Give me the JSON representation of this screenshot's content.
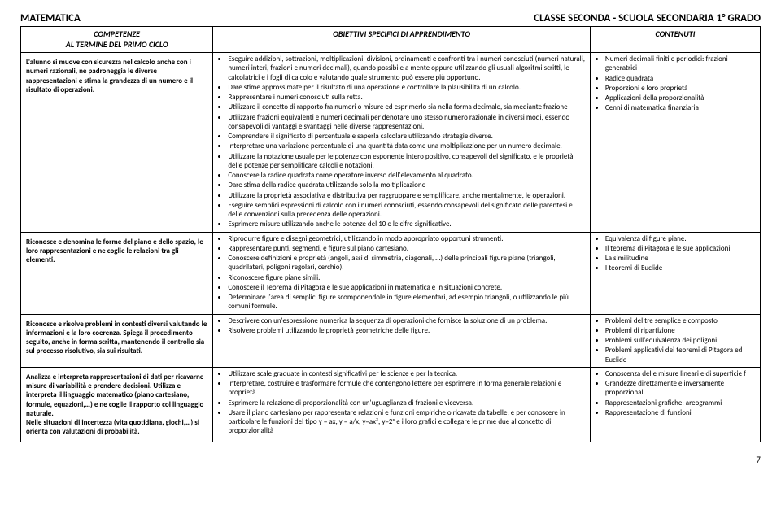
{
  "header": {
    "left": "MATEMATICA",
    "right": "CLASSE  SECONDA -  SCUOLA SECONDARIA 1° GRADO"
  },
  "columns": {
    "competenze": "COMPETENZE\nAL TERMINE DEL PRIMO CICLO",
    "obiettivi": "OBIETTIVI SPECIFICI DI APPRENDIMENTO",
    "contenuti": "CONTENUTI"
  },
  "rows": [
    {
      "comp": "L'alunno si muove con sicurezza nel calcolo anche con i numeri razionali, ne padroneggia le diverse rappresentazioni e stima la grandezza di un numero e il risultato di operazioni.",
      "obj": [
        "Eseguire addizioni, sottrazioni, moltiplicazioni, divisioni, ordinamenti e confronti tra i numeri conosciuti (numeri naturali, numeri interi, frazioni e numeri decimali), quando possibile a mente oppure utilizzando gli usuali algoritmi scritti, le calcolatrici e i fogli di calcolo e valutando quale strumento può essere più opportuno.",
        "Dare stime approssimate per il risultato di una operazione e controllare la plausibilità di un calcolo.",
        "Rappresentare i numeri conosciuti sulla retta.",
        "Utilizzare il concetto di rapporto fra numeri o misure ed esprimerlo sia nella forma decimale, sia mediante frazione",
        "Utilizzare frazioni equivalenti e numeri decimali per denotare uno stesso numero razionale in diversi modi, essendo consapevoli di vantaggi e svantaggi nelle diverse rappresentazioni.",
        "Comprendere il significato di percentuale e saperla calcolare utilizzando strategie diverse.",
        "Interpretare una variazione percentuale di una quantità data come una moltiplicazione per un numero decimale.",
        "Utilizzare la notazione usuale per le potenze con esponente intero positivo, consapevoli del significato, e le proprietà delle potenze per semplificare calcoli e notazioni.",
        "Conoscere la radice quadrata come operatore inverso dell'elevamento al quadrato.",
        "Dare stima della radice quadrata utilizzando solo la moltiplicazione",
        "Utilizzare la proprietà associativa e distributiva per raggruppare e semplificare, anche mentalmente, le operazioni.",
        "Eseguire semplici espressioni di calcolo con i numeri conosciuti, essendo consapevoli del significato delle parentesi e delle convenzioni sulla precedenza delle operazioni.",
        "Esprimere misure utilizzando anche le potenze del 10 e le cifre significative."
      ],
      "cont": [
        "Numeri decimali finiti e periodici: frazioni generatrici",
        "Radice quadrata",
        "Proporzioni e loro proprietà",
        "Applicazioni della proporzionalità",
        "Cenni di matematica finanziaria"
      ]
    },
    {
      "comp": "Riconosce e denomina le forme del piano e dello spazio, le loro rappresentazioni e ne coglie le relazioni tra gli elementi.",
      "obj": [
        "Riprodurre figure e disegni geometrici, utilizzando in modo appropriato opportuni strumenti.",
        "Rappresentare punti, segmenti, e figure sul piano cartesiano.",
        "Conoscere definizioni e proprietà (angoli, assi di simmetria, diagonali, …) delle principali figure piane (triangoli, quadrilateri, poligoni regolari, cerchio).",
        "Riconoscere figure piane simili.",
        "Conoscere il Teorema di Pitagora e le sue applicazioni in matematica e in situazioni concrete.",
        "Determinare l'area di semplici figure scomponendole in figure elementari, ad esempio triangoli, o utilizzando le più comuni formule."
      ],
      "cont": [
        "Equivalenza di figure piane.",
        "Il teorema di Pitagora e le sue applicazioni",
        "La similitudine",
        "I teoremi di Euclide"
      ]
    },
    {
      "comp": "Riconosce e risolve problemi in contesti diversi valutando le informazioni e la loro coerenza. Spiega il procedimento seguito, anche in forma scritta, mantenendo il controllo sia sul processo risolutivo, sia sui risultati.",
      "obj": [
        "Descrivere con un'espressione numerica la sequenza di operazioni che fornisce la soluzione di un problema.",
        "Risolvere problemi utilizzando le proprietà geometriche delle figure."
      ],
      "cont": [
        "Problemi del tre semplice e composto",
        "Problemi di ripartizione",
        "Problemi sull'equivalenza dei poligoni",
        "Problemi applicativi dei teoremi di Pitagora ed Euclide"
      ]
    },
    {
      "comp": "Analizza e interpreta rappresentazioni di dati per ricavarne misure di variabilità e prendere decisioni. Utilizza e interpreta il linguaggio matematico (piano cartesiano, formule, equazioni,…) e ne coglie il rapporto col linguaggio naturale.\nNelle situazioni di incertezza (vita quotidiana, giochi,…) si orienta con valutazioni di probabilità.",
      "obj": [
        "Utilizzare scale graduate in contesti significativi per le scienze e per la tecnica.",
        "Interpretare, costruire e trasformare formule che contengono lettere per esprimere in forma generale relazioni e proprietà",
        "Esprimere la relazione di proporzionalità con un'uguaglianza di frazioni e viceversa.",
        "Usare il piano cartesiano per rappresentare relazioni e funzioni empiriche o ricavate da tabelle, e per conoscere in particolare le funzioni del tipo y = ax, y = a/x, y=ax², y=2ˣ e i loro grafici e collegare le prime due al concetto di proporzionalità"
      ],
      "cont": [
        "Conoscenza delle misure lineari e di superficie f",
        "Grandezze direttamente e inversamente proporzionali",
        "Rappresentazioni grafiche: areogrammi",
        "Rappresentazione di funzioni"
      ]
    }
  ],
  "pageNumber": "7"
}
